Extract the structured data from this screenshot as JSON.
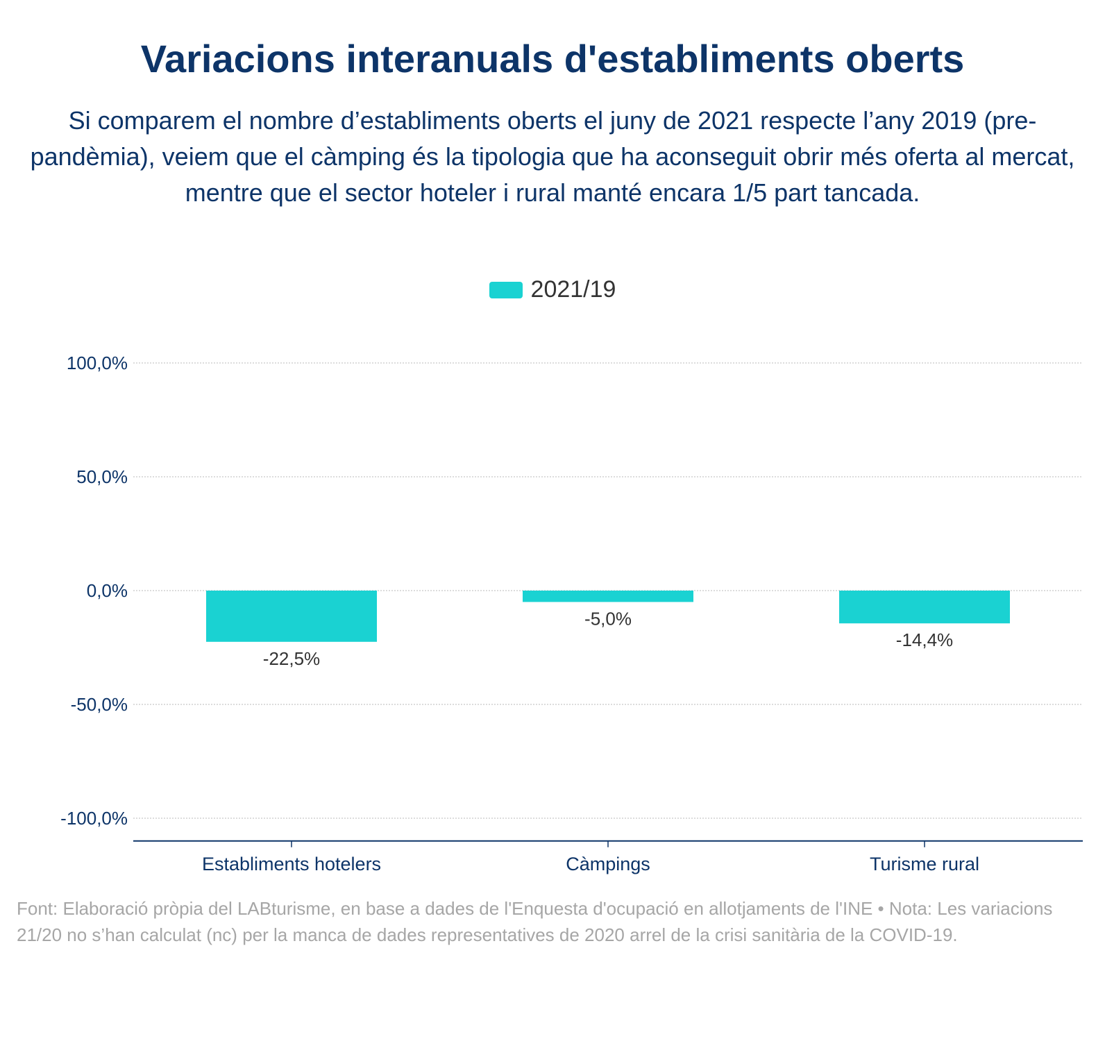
{
  "title": "Variacions interanuals d'establiments oberts",
  "subtitle": "Si comparem el nombre d’establiments oberts el juny de 2021 respecte l’any 2019 (pre-pandèmia), veiem que el càmping és la tipologia que ha aconseguit obrir més oferta al mercat, mentre que el sector hoteler i rural manté encara 1/5 part tancada.",
  "source": "Font: Elaboració pròpia del LABturisme, en base a dades de l'Enquesta d'ocupació en allotjaments de l'INE • Nota: Les variacions 21/20 no s’han calculat (nc) per la manca de dades representatives de 2020 arrel de la crisi sanitària de la COVID-19.",
  "colors": {
    "bar": "#1ad2d2",
    "text": "#0d3468",
    "grid": "#c8c8c8",
    "axis": "#0d3468"
  },
  "chart_data": {
    "type": "bar",
    "categories": [
      "Establiments hotelers",
      "Càmpings",
      "Turisme rural"
    ],
    "series": [
      {
        "name": "2021/19",
        "values": [
          -22.5,
          -5.0,
          -14.4
        ]
      }
    ],
    "data_labels": [
      "-22,5%",
      "-5,0%",
      "-14,4%"
    ],
    "yticks": [
      100,
      50,
      0,
      -50,
      -100
    ],
    "ytick_labels": [
      "100,0%",
      "50,0%",
      "0,0%",
      "-50,0%",
      "-100,0%"
    ],
    "ylim": [
      -110,
      100
    ],
    "grid": true,
    "legend_position": "top-center"
  }
}
